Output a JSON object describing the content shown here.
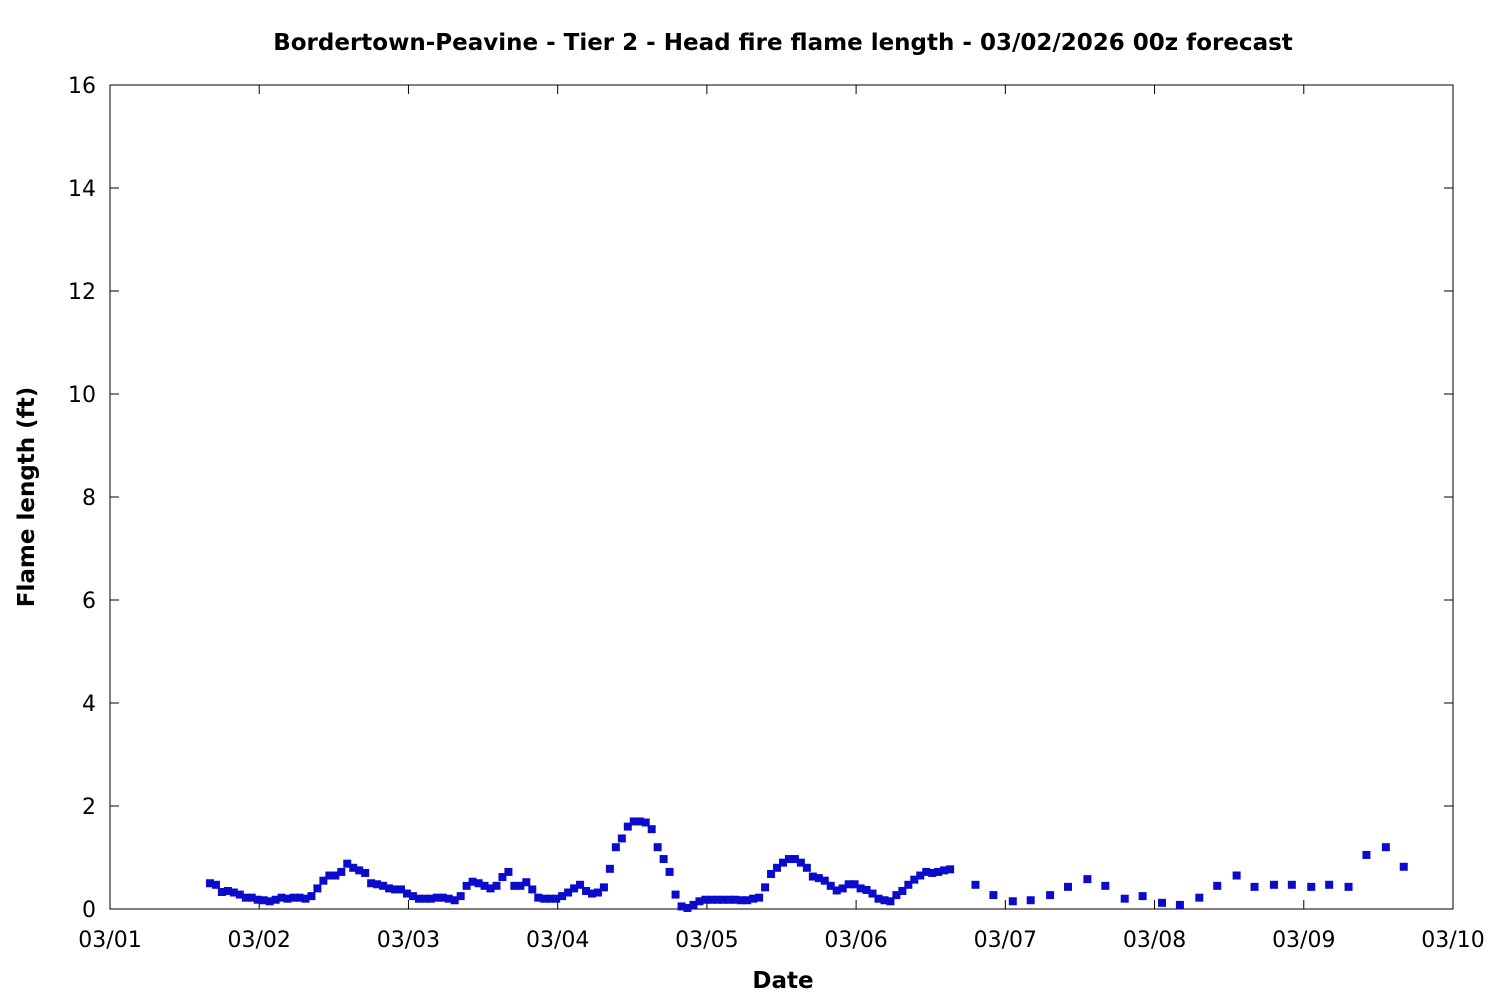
{
  "chart_data": {
    "type": "scatter",
    "title": "Bordertown-Peavine - Tier 2 - Head fire flame length - 03/02/2026 00z forecast",
    "x_label": "Date",
    "y_label": "Flame length (ft)",
    "color": "#0b0bcc",
    "xlim": [
      0,
      9
    ],
    "xticks": [
      {
        "value": 0,
        "label": "03/01"
      },
      {
        "value": 1,
        "label": "03/02"
      },
      {
        "value": 2,
        "label": "03/03"
      },
      {
        "value": 3,
        "label": "03/04"
      },
      {
        "value": 4,
        "label": "03/05"
      },
      {
        "value": 5,
        "label": "03/06"
      },
      {
        "value": 6,
        "label": "03/07"
      },
      {
        "value": 7,
        "label": "03/08"
      },
      {
        "value": 8,
        "label": "03/09"
      },
      {
        "value": 9,
        "label": "03/10"
      }
    ],
    "ylim": [
      0,
      16
    ],
    "yticks": [
      0,
      2,
      4,
      6,
      8,
      10,
      12,
      14,
      16
    ],
    "x": [
      0.67,
      0.71,
      0.75,
      0.79,
      0.83,
      0.87,
      0.91,
      0.95,
      0.99,
      1.03,
      1.07,
      1.11,
      1.15,
      1.19,
      1.23,
      1.27,
      1.31,
      1.35,
      1.39,
      1.43,
      1.47,
      1.51,
      1.55,
      1.59,
      1.63,
      1.67,
      1.71,
      1.75,
      1.79,
      1.83,
      1.87,
      1.91,
      1.95,
      1.99,
      2.03,
      2.07,
      2.11,
      2.15,
      2.19,
      2.23,
      2.27,
      2.31,
      2.35,
      2.39,
      2.43,
      2.47,
      2.51,
      2.55,
      2.59,
      2.63,
      2.67,
      2.71,
      2.75,
      2.79,
      2.83,
      2.87,
      2.91,
      2.95,
      2.99,
      3.03,
      3.07,
      3.11,
      3.15,
      3.19,
      3.23,
      3.27,
      3.31,
      3.35,
      3.39,
      3.43,
      3.47,
      3.51,
      3.55,
      3.59,
      3.63,
      3.67,
      3.71,
      3.75,
      3.79,
      3.83,
      3.87,
      3.91,
      3.95,
      3.99,
      4.03,
      4.07,
      4.11,
      4.15,
      4.19,
      4.23,
      4.27,
      4.31,
      4.35,
      4.39,
      4.43,
      4.47,
      4.51,
      4.55,
      4.59,
      4.63,
      4.67,
      4.71,
      4.75,
      4.79,
      4.83,
      4.87,
      4.91,
      4.95,
      4.99,
      5.03,
      5.07,
      5.11,
      5.15,
      5.19,
      5.23,
      5.27,
      5.31,
      5.35,
      5.39,
      5.43,
      5.47,
      5.51,
      5.55,
      5.59,
      5.63,
      5.8,
      5.92,
      6.05,
      6.17,
      6.3,
      6.42,
      6.55,
      6.67,
      6.8,
      6.92,
      7.05,
      7.17,
      7.3,
      7.42,
      7.55,
      7.67,
      7.8,
      7.92,
      8.05,
      8.17,
      8.3,
      8.42,
      8.55,
      8.67
    ],
    "values": [
      0.5,
      0.47,
      0.33,
      0.35,
      0.32,
      0.28,
      0.22,
      0.22,
      0.18,
      0.17,
      0.15,
      0.18,
      0.22,
      0.2,
      0.22,
      0.22,
      0.2,
      0.25,
      0.4,
      0.55,
      0.65,
      0.65,
      0.72,
      0.88,
      0.8,
      0.75,
      0.7,
      0.5,
      0.48,
      0.45,
      0.4,
      0.38,
      0.38,
      0.3,
      0.25,
      0.2,
      0.2,
      0.2,
      0.22,
      0.22,
      0.2,
      0.17,
      0.25,
      0.45,
      0.53,
      0.5,
      0.45,
      0.4,
      0.45,
      0.62,
      0.72,
      0.45,
      0.45,
      0.52,
      0.38,
      0.22,
      0.2,
      0.2,
      0.2,
      0.25,
      0.32,
      0.4,
      0.47,
      0.35,
      0.3,
      0.32,
      0.42,
      0.78,
      1.2,
      1.37,
      1.6,
      1.7,
      1.7,
      1.68,
      1.55,
      1.2,
      0.97,
      0.72,
      0.28,
      0.05,
      0.02,
      0.08,
      0.15,
      0.18,
      0.18,
      0.18,
      0.18,
      0.18,
      0.18,
      0.17,
      0.17,
      0.2,
      0.22,
      0.42,
      0.68,
      0.8,
      0.9,
      0.97,
      0.97,
      0.9,
      0.8,
      0.63,
      0.6,
      0.55,
      0.45,
      0.36,
      0.4,
      0.48,
      0.48,
      0.4,
      0.37,
      0.3,
      0.2,
      0.17,
      0.15,
      0.27,
      0.35,
      0.47,
      0.57,
      0.65,
      0.72,
      0.7,
      0.72,
      0.75,
      0.77,
      0.47,
      0.27,
      0.15,
      0.17,
      0.27,
      0.43,
      0.58,
      0.45,
      0.2,
      0.25,
      0.12,
      0.08,
      0.22,
      0.45,
      0.65,
      0.43,
      0.47,
      0.47,
      0.43,
      0.47,
      0.43,
      1.05,
      1.2,
      0.82
    ]
  }
}
